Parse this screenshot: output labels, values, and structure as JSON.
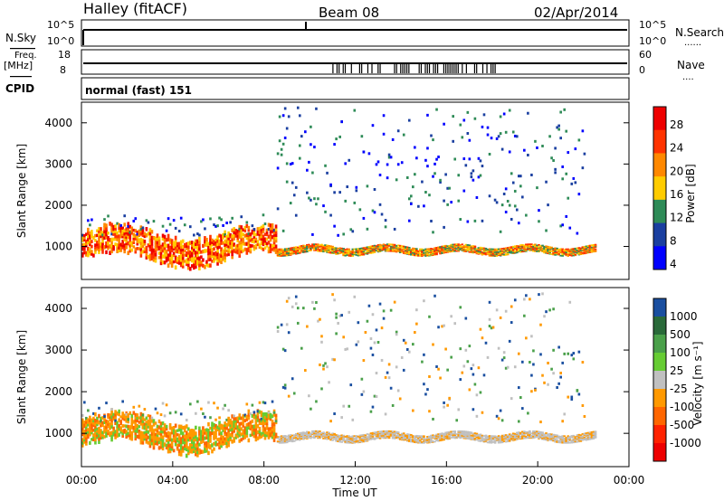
{
  "header": {
    "site": "Halley (fitACF)",
    "beam": "Beam 08",
    "date": "02/Apr/2014"
  },
  "left_labels": {
    "nsky": "N.Sky",
    "freq": "Freq.",
    "freq_unit": "[MHz]",
    "cpid": "CPID"
  },
  "right_labels": {
    "nsearch": "N.Search",
    "nsearch_dots": "......",
    "nave": "Nave",
    "nave_dots": "...."
  },
  "noise_panel": {
    "left_ticks": [
      "10^5",
      "10^0"
    ],
    "right_ticks": [
      "10^5",
      "10^0"
    ]
  },
  "freq_panel": {
    "left_ticks": [
      "18",
      "8"
    ],
    "right_ticks": [
      "60",
      "0"
    ]
  },
  "cpid_text": "normal (fast) 151",
  "x_axis": {
    "label": "Time UT",
    "ticks": [
      "00:00",
      "04:00",
      "08:00",
      "12:00",
      "16:00",
      "20:00",
      "00:00"
    ]
  },
  "power_colorbar": {
    "label": "Power [dB]",
    "ticks": [
      "28",
      "24",
      "20",
      "16",
      "12",
      "8",
      "4"
    ],
    "colors": [
      "#ee0000",
      "#ff3300",
      "#ff8800",
      "#ffcc00",
      "#2e8b57",
      "#1a3fa0",
      "#0000ff"
    ]
  },
  "velocity_colorbar": {
    "label": "Velocity [m s⁻¹]",
    "ticks": [
      "1000",
      "500",
      "100",
      "25",
      "-25",
      "-100",
      "-500",
      "-1000"
    ],
    "colors": [
      "#1a4fa0",
      "#2a6a3a",
      "#4aa04a",
      "#66cc33",
      "#c0c0c0",
      "#ff9900",
      "#ff6600",
      "#ff2200",
      "#ee0000"
    ]
  },
  "chart_data": [
    {
      "type": "heatmap",
      "title": "",
      "xlabel": "",
      "ylabel": "Slant Range [km]",
      "xlim": [
        0,
        24
      ],
      "ylim": [
        200,
        4500
      ],
      "yticks": [
        1000,
        2000,
        3000,
        4000
      ],
      "colorbar_label": "Power [dB]",
      "colorbar_range": [
        0,
        32
      ],
      "features": [
        {
          "desc": "strong E-region band",
          "t_start": 0,
          "t_end": 8.5,
          "range_center": 1000,
          "power": 28
        },
        {
          "desc": "weak band",
          "t_start": 9,
          "t_end": 22.5,
          "range_center": 900,
          "power": 20
        },
        {
          "desc": "sporadic high-range echoes",
          "t_start": 8.5,
          "t_end": 22,
          "range_center": 2500,
          "power": 8
        }
      ]
    },
    {
      "type": "heatmap",
      "title": "",
      "xlabel": "Time UT",
      "ylabel": "Slant Range [km]",
      "xlim": [
        0,
        24
      ],
      "ylim": [
        200,
        4500
      ],
      "yticks": [
        1000,
        2000,
        3000,
        4000
      ],
      "colorbar_label": "Velocity [m s⁻¹]",
      "colorbar_range": [
        -1000,
        1000
      ],
      "features": [
        {
          "desc": "negative velocities in morning band",
          "t_start": 0,
          "t_end": 8.5,
          "range_center": 1200,
          "velocity": -400
        },
        {
          "desc": "ground-scatter band",
          "t_start": 9,
          "t_end": 22,
          "range_center": 1000,
          "velocity": 0
        }
      ]
    }
  ]
}
